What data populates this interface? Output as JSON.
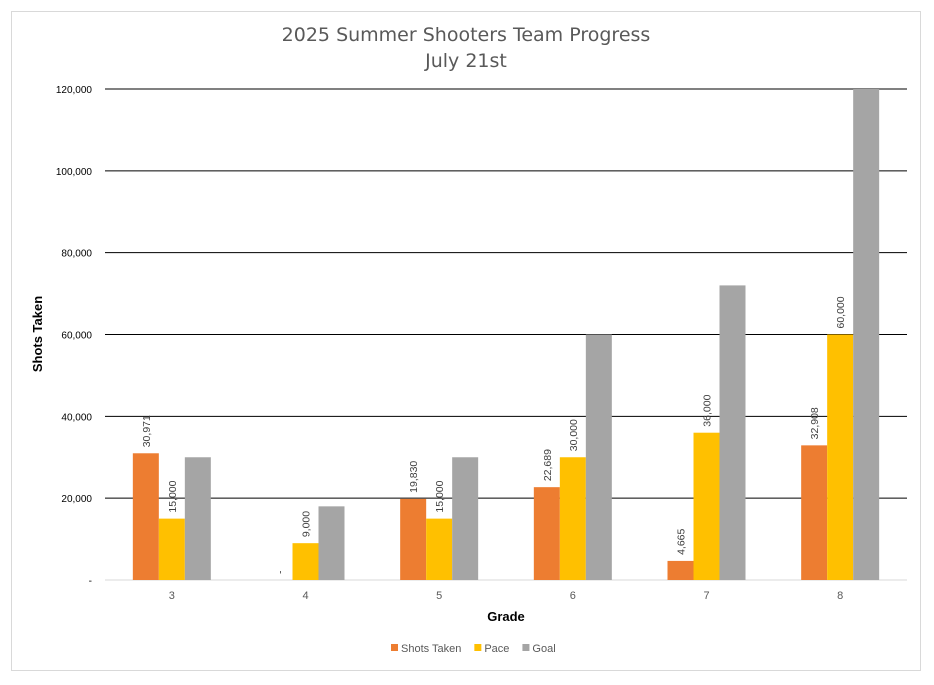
{
  "chart_data": {
    "type": "bar",
    "title": "2025 Summer Shooters Team Progress",
    "subtitle": "July 21st",
    "xlabel": "Grade",
    "ylabel": "Shots Taken",
    "categories": [
      "3",
      "4",
      "5",
      "6",
      "7",
      "8"
    ],
    "ylim": [
      0,
      120000
    ],
    "yticks": [
      0,
      20000,
      40000,
      60000,
      80000,
      100000,
      120000
    ],
    "ytick_labels": [
      "-",
      "20,000",
      "40,000",
      "60,000",
      "80,000",
      "100,000",
      "120,000"
    ],
    "grid": true,
    "legend_position": "bottom",
    "series": [
      {
        "name": "Shots Taken",
        "color": "#ED7D31",
        "values": [
          30971,
          0,
          19830,
          22689,
          4665,
          32908
        ],
        "labels": [
          "30,971",
          "-",
          "19,830",
          "22,689",
          "4,665",
          "32,908"
        ]
      },
      {
        "name": "Pace",
        "color": "#FFC000",
        "values": [
          15000,
          9000,
          15000,
          30000,
          36000,
          60000
        ],
        "labels": [
          "15,000",
          "9,000",
          "15,000",
          "30,000",
          "36,000",
          "60,000"
        ]
      },
      {
        "name": "Goal",
        "color": "#A5A5A5",
        "values": [
          30000,
          18000,
          30000,
          60000,
          72000,
          120000
        ],
        "labels": null
      }
    ]
  }
}
